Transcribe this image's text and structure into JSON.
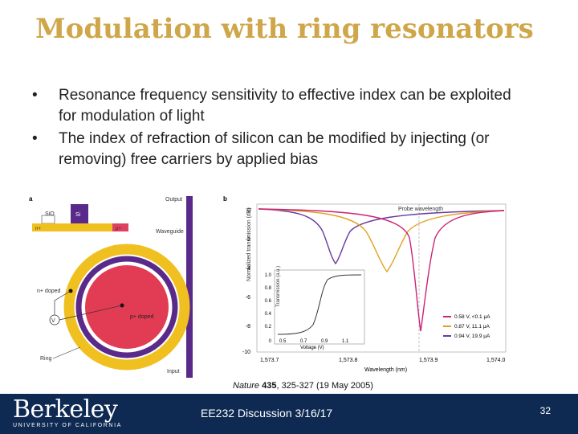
{
  "slide": {
    "title": "Modulation with ring resonators",
    "bullets": [
      "Resonance frequency sensitivity to effective index can be exploited for modulation of light",
      "The index of refraction of silicon can be modified by injecting (or removing) free carriers by applied bias"
    ],
    "bullet_glyph": "•",
    "caption_journal": "Nature",
    "caption_volume": "435",
    "caption_rest": ", 325-327 (19 May 2005)"
  },
  "figure_a": {
    "panel": "a",
    "sio2": "SiO",
    "si": "Si",
    "n_plus": "n+",
    "p_plus": "p+",
    "output": "Output",
    "waveguide": "Waveguide",
    "n_doped": "n+ doped",
    "p_doped": "p+ doped",
    "source": "V",
    "ring": "Ring",
    "input": "Input"
  },
  "figure_b": {
    "panel": "b",
    "probe": "Probe wavelength",
    "ylabel": "Normalized transmission (dB)",
    "xlabel": "Wavelength (nm)",
    "yticks": [
      "0",
      "-2",
      "-4",
      "-6",
      "-8",
      "-10"
    ],
    "xticks": [
      "1,573.7",
      "1,573.8",
      "1,573.9",
      "1,574.0"
    ],
    "inset_ylabel": "Transmission (a.u.)",
    "inset_xlabel": "Voltage (V)",
    "inset_yticks": [
      "1.0",
      "0.8",
      "0.6",
      "0.4",
      "0.2",
      "0"
    ],
    "inset_xticks": [
      "0.5",
      "0.7",
      "0.9",
      "1.1"
    ],
    "legend": [
      {
        "label": "0.58 V, <0.1 μA",
        "color": "#cc2277"
      },
      {
        "label": "0.87 V, 11.1 μA",
        "color": "#e0a020"
      },
      {
        "label": "0.94 V, 19.9 μA",
        "color": "#6a3aa0"
      }
    ]
  },
  "footer": {
    "logo_name": "Berkeley",
    "logo_sub": "UNIVERSITY OF CALIFORNIA",
    "course": "EE232 Discussion 3/16/17",
    "page": "32"
  },
  "colors": {
    "title": "#cfa64a",
    "footer": "#0f2a52",
    "ring_gold": "#f0c020",
    "ring_purple": "#5a2a8a"
  }
}
